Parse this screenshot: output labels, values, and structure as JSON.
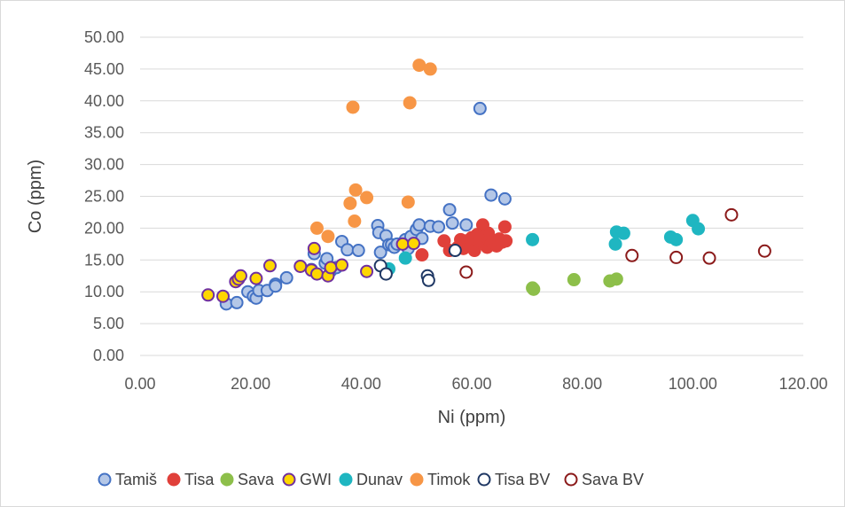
{
  "chart_data": {
    "type": "scatter",
    "xlabel": "Ni (ppm)",
    "ylabel": "Co (ppm)",
    "xlim": [
      0,
      120
    ],
    "ylim": [
      0,
      50
    ],
    "x_ticks": [
      "0.00",
      "20.00",
      "40.00",
      "60.00",
      "80.00",
      "100.00",
      "120.00"
    ],
    "y_ticks": [
      "0.00",
      "5.00",
      "10.00",
      "15.00",
      "20.00",
      "25.00",
      "30.00",
      "35.00",
      "40.00",
      "45.00",
      "50.00"
    ],
    "grid": "horizontal",
    "legend_position": "bottom",
    "series": [
      {
        "name": "Tamiš",
        "fill": "#b4c7e7",
        "stroke": "#4472c4",
        "points": [
          [
            15.6,
            8.1
          ],
          [
            17.5,
            8.3
          ],
          [
            19.5,
            10
          ],
          [
            20.5,
            9.3
          ],
          [
            21,
            9
          ],
          [
            21.5,
            10.2
          ],
          [
            23,
            10.2
          ],
          [
            24.5,
            11.2
          ],
          [
            24.5,
            10.9
          ],
          [
            26.5,
            12.2
          ],
          [
            31,
            13.5
          ],
          [
            31.5,
            16
          ],
          [
            33.5,
            14.5
          ],
          [
            33.8,
            15.2
          ],
          [
            34.5,
            13.3
          ],
          [
            35.5,
            13.8
          ],
          [
            36.5,
            17.9
          ],
          [
            37.5,
            16.6
          ],
          [
            39.5,
            16.5
          ],
          [
            43,
            20.4
          ],
          [
            43.2,
            19.3
          ],
          [
            43.5,
            16.2
          ],
          [
            44.5,
            18.8
          ],
          [
            45,
            17.4
          ],
          [
            45.5,
            17.4
          ],
          [
            46,
            17
          ],
          [
            46.5,
            17.5
          ],
          [
            48,
            18.2
          ],
          [
            48.5,
            16.8
          ],
          [
            49,
            18.7
          ],
          [
            50,
            19.8
          ],
          [
            50.5,
            20.5
          ],
          [
            51,
            18.4
          ],
          [
            52.5,
            20.3
          ],
          [
            54,
            20.2
          ],
          [
            56,
            22.9
          ],
          [
            56.5,
            20.8
          ],
          [
            59,
            20.5
          ],
          [
            61.5,
            38.8
          ],
          [
            63.5,
            25.2
          ],
          [
            66,
            24.6
          ]
        ]
      },
      {
        "name": "Tisa",
        "fill": "#e0403a",
        "stroke": "#e0403a",
        "points": [
          [
            51,
            15.8
          ],
          [
            55,
            18
          ],
          [
            56,
            16.5
          ],
          [
            57.5,
            17
          ],
          [
            58,
            18.2
          ],
          [
            58.5,
            16.8
          ],
          [
            59,
            18
          ],
          [
            59.5,
            17.2
          ],
          [
            60,
            18.5
          ],
          [
            60.5,
            16.5
          ],
          [
            61,
            19
          ],
          [
            61.5,
            17.8
          ],
          [
            62,
            20.5
          ],
          [
            62.5,
            18.8
          ],
          [
            62.8,
            17
          ],
          [
            63,
            19.2
          ],
          [
            63.5,
            17.5
          ],
          [
            64,
            18
          ],
          [
            64.5,
            17.2
          ],
          [
            65,
            18.3
          ],
          [
            65.5,
            17.8
          ],
          [
            66,
            20.2
          ],
          [
            66.2,
            18
          ]
        ]
      },
      {
        "name": "Sava",
        "fill": "#8dbf4a",
        "stroke": "#8dbf4a",
        "points": [
          [
            71,
            10.6
          ],
          [
            71.2,
            10.4
          ],
          [
            78.5,
            11.9
          ],
          [
            85,
            11.7
          ],
          [
            86.2,
            12
          ]
        ]
      },
      {
        "name": "GWI",
        "fill": "#ffd700",
        "stroke": "#7030a0",
        "points": [
          [
            12.3,
            9.5
          ],
          [
            15,
            9.3
          ],
          [
            17.3,
            11.6
          ],
          [
            17.8,
            12
          ],
          [
            18.2,
            12.5
          ],
          [
            21,
            12.1
          ],
          [
            23.5,
            14.1
          ],
          [
            29,
            14
          ],
          [
            31,
            13.4
          ],
          [
            31.5,
            16.8
          ],
          [
            32,
            12.8
          ],
          [
            34,
            12.5
          ],
          [
            34.5,
            13.8
          ],
          [
            36.5,
            14.2
          ],
          [
            41,
            13.2
          ],
          [
            47.5,
            17.5
          ],
          [
            49.5,
            17.6
          ]
        ]
      },
      {
        "name": "Dunav",
        "fill": "#1fb6c1",
        "stroke": "#1fb6c1",
        "points": [
          [
            45,
            13.6
          ],
          [
            48,
            15.3
          ],
          [
            71,
            18.2
          ],
          [
            86,
            17.5
          ],
          [
            86.2,
            19.4
          ],
          [
            87.5,
            19.2
          ],
          [
            96,
            18.6
          ],
          [
            97,
            18.2
          ],
          [
            100,
            21.2
          ],
          [
            101,
            19.9
          ]
        ]
      },
      {
        "name": "Timok",
        "fill": "#f79646",
        "stroke": "#f79646",
        "points": [
          [
            32,
            20
          ],
          [
            34,
            18.7
          ],
          [
            38,
            23.9
          ],
          [
            38.5,
            39
          ],
          [
            38.8,
            21.1
          ],
          [
            39,
            26
          ],
          [
            41,
            24.8
          ],
          [
            48.5,
            24.1
          ],
          [
            48.8,
            39.7
          ],
          [
            50.5,
            45.6
          ],
          [
            52.5,
            45
          ]
        ]
      },
      {
        "name": "Tisa BV",
        "fill": "#ffffff",
        "stroke": "#1f3864",
        "points": [
          [
            43.5,
            14.1
          ],
          [
            44.5,
            12.8
          ],
          [
            52,
            12.5
          ],
          [
            52.2,
            11.8
          ],
          [
            57,
            16.5
          ]
        ]
      },
      {
        "name": "Sava BV",
        "fill": "#ffffff",
        "stroke": "#8b1a1a",
        "points": [
          [
            59,
            13.1
          ],
          [
            89,
            15.7
          ],
          [
            97,
            15.4
          ],
          [
            103,
            15.3
          ],
          [
            107,
            22.1
          ],
          [
            113,
            16.4
          ]
        ]
      }
    ]
  }
}
